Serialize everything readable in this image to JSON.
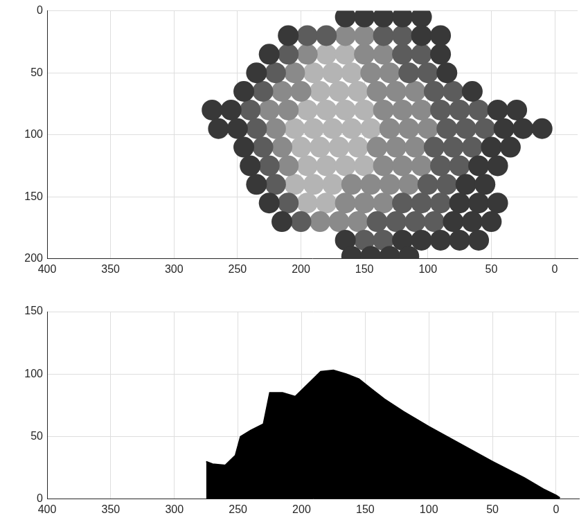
{
  "chart_data": [
    {
      "type": "scatter",
      "marker": "circle",
      "grid": true,
      "xlim": [
        400,
        -18
      ],
      "xticks": [
        400,
        350,
        300,
        250,
        200,
        150,
        100,
        50,
        0
      ],
      "ylim": [
        200,
        0
      ],
      "yticks": [
        0,
        50,
        100,
        150,
        200
      ],
      "series": [
        {
          "color": "#383838",
          "x": [
            165,
            150,
            135,
            120,
            105,
            210,
            105,
            90,
            225,
            90,
            235,
            85,
            245,
            65,
            270,
            255,
            45,
            30,
            265,
            250,
            40,
            25,
            10,
            245,
            50,
            35,
            240,
            60,
            45,
            235,
            70,
            55,
            225,
            75,
            60,
            45,
            215,
            80,
            65,
            50,
            165,
            120,
            105,
            90,
            75,
            60,
            160,
            145,
            130,
            115
          ],
          "y": [
            5,
            5,
            5,
            5,
            5,
            20,
            20,
            20,
            35,
            35,
            50,
            50,
            65,
            65,
            80,
            80,
            80,
            80,
            95,
            95,
            95,
            95,
            95,
            110,
            110,
            110,
            125,
            125,
            125,
            140,
            140,
            140,
            155,
            155,
            155,
            155,
            170,
            170,
            170,
            170,
            185,
            185,
            185,
            185,
            185,
            185,
            198,
            198,
            198,
            198
          ]
        },
        {
          "color": "#5c5c5c",
          "x": [
            195,
            180,
            135,
            120,
            210,
            120,
            105,
            220,
            115,
            100,
            230,
            95,
            80,
            240,
            90,
            75,
            60,
            235,
            85,
            70,
            55,
            230,
            95,
            80,
            65,
            225,
            90,
            75,
            220,
            100,
            85,
            210,
            120,
            105,
            90,
            200,
            140,
            125,
            110,
            95,
            150,
            135
          ],
          "y": [
            20,
            20,
            20,
            20,
            35,
            35,
            35,
            50,
            50,
            50,
            65,
            65,
            65,
            80,
            80,
            80,
            80,
            95,
            95,
            95,
            95,
            110,
            110,
            110,
            110,
            125,
            125,
            125,
            140,
            140,
            140,
            155,
            155,
            155,
            155,
            170,
            170,
            170,
            170,
            170,
            185,
            185
          ]
        },
        {
          "color": "#8a8a8a",
          "x": [
            165,
            150,
            195,
            150,
            135,
            205,
            145,
            130,
            215,
            200,
            140,
            125,
            110,
            225,
            210,
            135,
            120,
            105,
            220,
            130,
            115,
            100,
            215,
            140,
            125,
            110,
            210,
            135,
            120,
            105,
            160,
            145,
            130,
            115,
            165,
            150,
            135,
            185,
            170,
            155
          ],
          "y": [
            20,
            20,
            35,
            35,
            35,
            50,
            50,
            50,
            65,
            65,
            65,
            65,
            65,
            80,
            80,
            80,
            80,
            80,
            95,
            95,
            95,
            95,
            110,
            110,
            110,
            110,
            125,
            125,
            125,
            125,
            140,
            140,
            140,
            140,
            155,
            155,
            155,
            170,
            170,
            170
          ]
        },
        {
          "color": "#b4b4b4",
          "x": [
            180,
            165,
            190,
            175,
            160,
            185,
            170,
            155,
            195,
            180,
            165,
            150,
            205,
            190,
            175,
            160,
            145,
            200,
            185,
            170,
            155,
            195,
            180,
            165,
            150,
            205,
            190,
            175,
            195,
            180
          ],
          "y": [
            35,
            35,
            50,
            50,
            50,
            65,
            65,
            65,
            80,
            80,
            80,
            80,
            95,
            95,
            95,
            95,
            95,
            110,
            110,
            110,
            110,
            125,
            125,
            125,
            125,
            140,
            140,
            140,
            155,
            155
          ]
        }
      ]
    },
    {
      "type": "area",
      "grid": true,
      "xlim": [
        400,
        -18
      ],
      "xticks": [
        400,
        350,
        300,
        250,
        200,
        150,
        100,
        50,
        0
      ],
      "ylim": [
        0,
        150
      ],
      "yticks": [
        0,
        50,
        100,
        150
      ],
      "series": [
        {
          "color": "#000000",
          "x": [
            275,
            270,
            260,
            252,
            248,
            240,
            230,
            225,
            215,
            205,
            195,
            185,
            175,
            165,
            155,
            145,
            135,
            120,
            100,
            75,
            50,
            25,
            10,
            0,
            -3
          ],
          "y": [
            30,
            28,
            27,
            35,
            50,
            55,
            60,
            85,
            85,
            82,
            92,
            102,
            103,
            100,
            96,
            88,
            80,
            70,
            58,
            44,
            30,
            17,
            8,
            3,
            1
          ]
        }
      ]
    }
  ]
}
